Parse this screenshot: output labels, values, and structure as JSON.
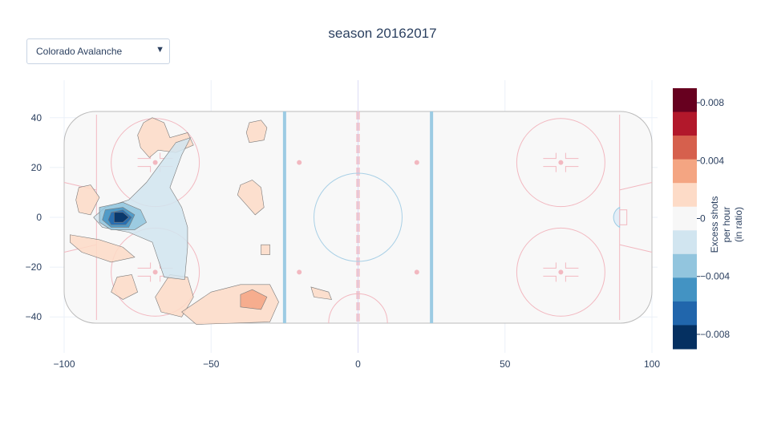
{
  "title": "season 20162017",
  "dropdown": {
    "selected": "Colorado Avalanche",
    "icon": "triangle-down-icon"
  },
  "chart_data": {
    "type": "heatmap",
    "subtype": "contour over hockey rink",
    "title": "season 20162017",
    "team": "Colorado Avalanche",
    "xlim": [
      -100,
      100
    ],
    "ylim": [
      -42.5,
      42.5
    ],
    "x_ticks": [
      -100,
      -50,
      0,
      50,
      100
    ],
    "y_ticks": [
      -40,
      -20,
      0,
      20,
      40
    ],
    "grid": true,
    "colorbar": {
      "title_lines": [
        "Excess shots",
        "per hour",
        "(in ratio)"
      ],
      "ticks": [
        0.008,
        0.004,
        0,
        -0.004,
        -0.008
      ],
      "range": [
        -0.009,
        0.009
      ],
      "colors": [
        "#67001f",
        "#b2182b",
        "#d6604d",
        "#f4a582",
        "#fddbc7",
        "#f7f7f7",
        "#d1e5f0",
        "#92c5de",
        "#4393c3",
        "#2166ac",
        "#053061"
      ]
    },
    "regions": [
      {
        "name": "slot-high-density",
        "center": [
          -80,
          0
        ],
        "level": -0.009
      },
      {
        "name": "slot-core",
        "center": [
          -79,
          0
        ],
        "level": -0.007
      },
      {
        "name": "slot-mid",
        "center": [
          -78,
          0
        ],
        "level": -0.005
      },
      {
        "name": "slot-outer",
        "center": [
          -76,
          0
        ],
        "level": -0.003
      },
      {
        "name": "diagonal-band",
        "center": [
          -65,
          15
        ],
        "level": -0.001
      },
      {
        "name": "upper-left-pocket",
        "center": [
          -70,
          30
        ],
        "level": 0.001
      },
      {
        "name": "lower-right-pocket",
        "center": [
          -37,
          -32
        ],
        "level": 0.003
      }
    ]
  }
}
